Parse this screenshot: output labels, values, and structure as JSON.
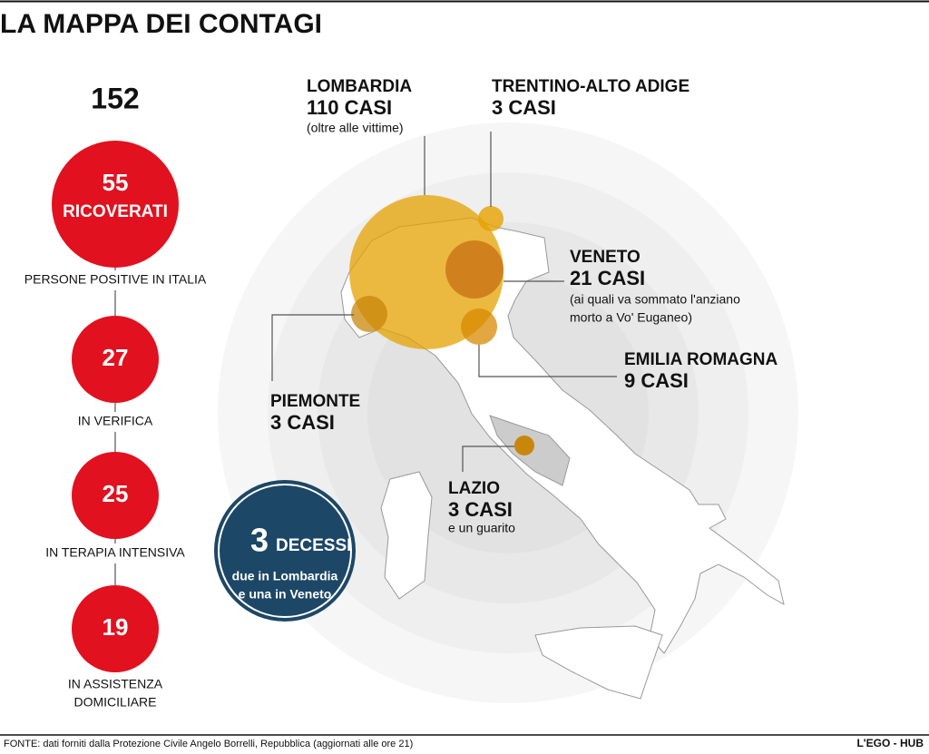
{
  "header": {
    "title": "LA MAPPA DEI CONTAGI"
  },
  "summary": {
    "total": 152,
    "total_label": "PERSONE POSITIVE IN ITALIA",
    "stats": [
      {
        "value": 55,
        "label": [
          "RICOVERATI"
        ]
      },
      {
        "value": 27,
        "label": [
          "IN VERIFICA"
        ]
      },
      {
        "value": 25,
        "label": [
          "IN TERAPIA INTENSIVA"
        ]
      },
      {
        "value": 19,
        "label": [
          "IN ASSISTENZA",
          "DOMICILIARE"
        ]
      }
    ]
  },
  "deaths": {
    "value": 3,
    "label": "DECESSI",
    "note": [
      "due in Lombardia",
      "e una in Veneto"
    ]
  },
  "regions": [
    {
      "name": "LOMBARDIA",
      "cases": "110 CASI",
      "note": [
        "(oltre alle vittime)"
      ]
    },
    {
      "name": "TRENTINO-ALTO ADIGE",
      "cases": "3 CASI",
      "note": []
    },
    {
      "name": "VENETO",
      "cases": "21 CASI",
      "note": [
        "(ai quali va sommato l'anziano",
        "morto a Vo' Euganeo)"
      ]
    },
    {
      "name": "EMILIA ROMAGNA",
      "cases": "9 CASI",
      "note": []
    },
    {
      "name": "PIEMONTE",
      "cases": "3 CASI",
      "note": []
    },
    {
      "name": "LAZIO",
      "cases": "3 CASI",
      "note": [
        "e un guarito"
      ]
    }
  ],
  "footer": {
    "source": "FONTE: dati forniti dalla Protezione Civile Angelo Borrelli, Repubblica (aggiornati alle ore 21)",
    "brand": "L'EGO - HUB"
  }
}
